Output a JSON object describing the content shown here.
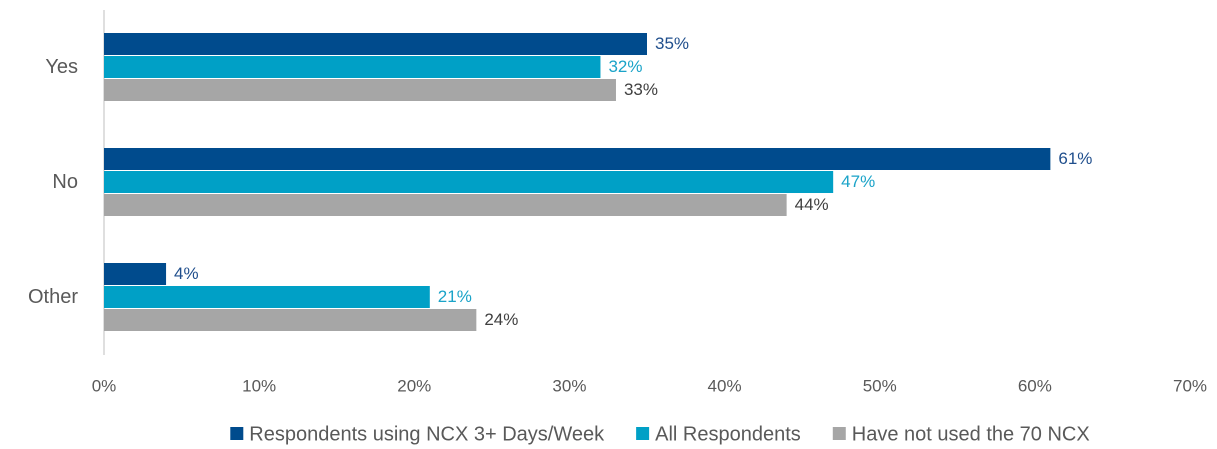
{
  "chart_data": {
    "type": "hbar",
    "categories": [
      "Yes",
      "No",
      "Other"
    ],
    "series": [
      {
        "name": "Respondents using NCX 3+ Days/Week",
        "color": "#004b8d",
        "label_color": "#1f4e8c",
        "values": [
          35,
          61,
          4
        ],
        "value_labels": [
          "35%",
          "61%",
          "4%"
        ]
      },
      {
        "name": "All Respondents",
        "color": "#00a0c6",
        "label_color": "#1aa3c8",
        "values": [
          32,
          47,
          21
        ],
        "value_labels": [
          "32%",
          "47%",
          "21%"
        ]
      },
      {
        "name": "Have not used the 70 NCX",
        "color": "#a6a6a6",
        "label_color": "#404040",
        "values": [
          33,
          44,
          24
        ],
        "value_labels": [
          "33%",
          "44%",
          "24%"
        ]
      }
    ],
    "xlim": [
      0,
      70
    ],
    "xticks": [
      {
        "value": 0,
        "label": "0%"
      },
      {
        "value": 10,
        "label": "10%"
      },
      {
        "value": 20,
        "label": "20%"
      },
      {
        "value": 30,
        "label": "30%"
      },
      {
        "value": 40,
        "label": "40%"
      },
      {
        "value": 50,
        "label": "50%"
      },
      {
        "value": 60,
        "label": "60%"
      },
      {
        "value": 70,
        "label": "70%"
      }
    ],
    "grid": false,
    "legend": "bottom"
  }
}
